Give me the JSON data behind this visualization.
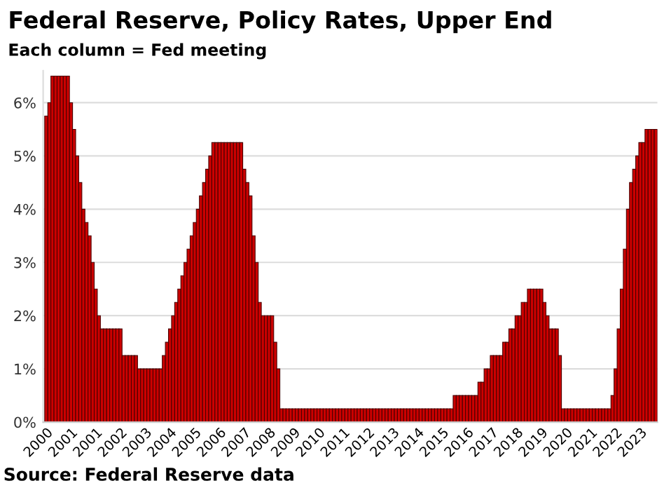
{
  "chart_data": {
    "type": "bar",
    "title": "Federal Reserve, Policy Rates, Upper End",
    "subtitle": "Each column = Fed meeting",
    "annotations": [
      "Source: Federal Reserve data"
    ],
    "categories": [
      "2000",
      null,
      null,
      null,
      null,
      null,
      null,
      null,
      "2001",
      null,
      null,
      null,
      null,
      null,
      null,
      null,
      "2001",
      null,
      null,
      null,
      null,
      null,
      null,
      null,
      "2002",
      null,
      null,
      null,
      null,
      null,
      null,
      null,
      "2003",
      null,
      null,
      null,
      null,
      null,
      null,
      null,
      "2004",
      null,
      null,
      null,
      null,
      null,
      null,
      null,
      "2005",
      null,
      null,
      null,
      null,
      null,
      null,
      null,
      "2006",
      null,
      null,
      null,
      null,
      null,
      null,
      null,
      "2007",
      null,
      null,
      null,
      null,
      null,
      null,
      null,
      "2008",
      null,
      null,
      null,
      null,
      null,
      null,
      null,
      "2009",
      null,
      null,
      null,
      null,
      null,
      null,
      null,
      "2010",
      null,
      null,
      null,
      null,
      null,
      null,
      null,
      "2011",
      null,
      null,
      null,
      null,
      null,
      null,
      null,
      "2012",
      null,
      null,
      null,
      null,
      null,
      null,
      null,
      "2013",
      null,
      null,
      null,
      null,
      null,
      null,
      null,
      "2014",
      null,
      null,
      null,
      null,
      null,
      null,
      null,
      "2015",
      null,
      null,
      null,
      null,
      null,
      null,
      null,
      "2016",
      null,
      null,
      null,
      null,
      null,
      null,
      null,
      "2017",
      null,
      null,
      null,
      null,
      null,
      null,
      null,
      "2018",
      null,
      null,
      null,
      null,
      null,
      null,
      null,
      "2019",
      null,
      null,
      null,
      null,
      null,
      null,
      null,
      "2020",
      null,
      null,
      null,
      null,
      null,
      null,
      null,
      "2021",
      null,
      null,
      null,
      null,
      null,
      null,
      null,
      "2022",
      null,
      null,
      null,
      null,
      null,
      null,
      null,
      "2023",
      null,
      null,
      null,
      null,
      null
    ],
    "values": [
      5.75,
      6,
      6.5,
      6.5,
      6.5,
      6.5,
      6.5,
      6.5,
      6,
      5.5,
      5,
      4.5,
      4,
      3.75,
      3.5,
      3,
      2.5,
      2,
      1.75,
      1.75,
      1.75,
      1.75,
      1.75,
      1.75,
      1.75,
      1.25,
      1.25,
      1.25,
      1.25,
      1.25,
      1,
      1,
      1,
      1,
      1,
      1,
      1,
      1,
      1.25,
      1.5,
      1.75,
      2,
      2.25,
      2.5,
      2.75,
      3,
      3.25,
      3.5,
      3.75,
      4,
      4.25,
      4.5,
      4.75,
      5,
      5.25,
      5.25,
      5.25,
      5.25,
      5.25,
      5.25,
      5.25,
      5.25,
      5.25,
      5.25,
      4.75,
      4.5,
      4.25,
      3.5,
      3,
      2.25,
      2,
      2,
      2,
      2,
      1.5,
      1,
      0.25,
      0.25,
      0.25,
      0.25,
      0.25,
      0.25,
      0.25,
      0.25,
      0.25,
      0.25,
      0.25,
      0.25,
      0.25,
      0.25,
      0.25,
      0.25,
      0.25,
      0.25,
      0.25,
      0.25,
      0.25,
      0.25,
      0.25,
      0.25,
      0.25,
      0.25,
      0.25,
      0.25,
      0.25,
      0.25,
      0.25,
      0.25,
      0.25,
      0.25,
      0.25,
      0.25,
      0.25,
      0.25,
      0.25,
      0.25,
      0.25,
      0.25,
      0.25,
      0.25,
      0.25,
      0.25,
      0.25,
      0.25,
      0.25,
      0.25,
      0.25,
      0.25,
      0.25,
      0.25,
      0.25,
      0.25,
      0.5,
      0.5,
      0.5,
      0.5,
      0.5,
      0.5,
      0.5,
      0.5,
      0.75,
      0.75,
      1,
      1,
      1.25,
      1.25,
      1.25,
      1.25,
      1.5,
      1.5,
      1.75,
      1.75,
      2,
      2,
      2.25,
      2.25,
      2.5,
      2.5,
      2.5,
      2.5,
      2.5,
      2.25,
      2,
      1.75,
      1.75,
      1.75,
      1.25,
      0.25,
      0.25,
      0.25,
      0.25,
      0.25,
      0.25,
      0.25,
      0.25,
      0.25,
      0.25,
      0.25,
      0.25,
      0.25,
      0.25,
      0.25,
      0.25,
      0.5,
      1,
      1.75,
      2.5,
      3.25,
      4,
      4.5,
      4.75,
      5,
      5.25,
      5.25,
      5.5,
      5.5,
      5.5,
      5.5
    ],
    "color": "#cc0000",
    "ylim": [
      0,
      6.6
    ],
    "yticks": [
      {
        "value": 0,
        "label": "0%"
      },
      {
        "value": 1,
        "label": "1%"
      },
      {
        "value": 2,
        "label": "2%"
      },
      {
        "value": 3,
        "label": "3%"
      },
      {
        "value": 4,
        "label": "4%"
      },
      {
        "value": 5,
        "label": "5%"
      },
      {
        "value": 6,
        "label": "6%"
      }
    ],
    "grid": "y"
  }
}
